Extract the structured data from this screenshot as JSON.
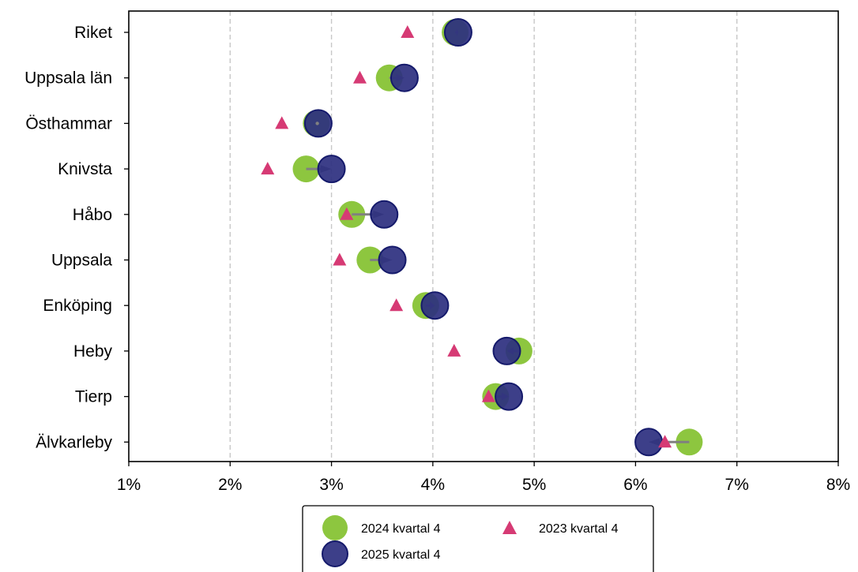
{
  "chart_data": {
    "type": "scatter",
    "categories": [
      "Riket",
      "Uppsala län",
      "Östhammar",
      "Knivsta",
      "Håbo",
      "Uppsala",
      "Enköping",
      "Heby",
      "Tierp",
      "Älvkarleby"
    ],
    "series": [
      {
        "name": "2024 kvartal 4",
        "marker": "circle",
        "color": "#8dc63f",
        "values": [
          4.22,
          3.57,
          2.85,
          2.75,
          3.2,
          3.38,
          3.93,
          4.85,
          4.62,
          6.53
        ]
      },
      {
        "name": "2025 kvartal 4",
        "marker": "circle",
        "color": "#2d2f7f",
        "values": [
          4.25,
          3.72,
          2.87,
          3.0,
          3.52,
          3.6,
          4.02,
          4.73,
          4.75,
          6.13
        ]
      },
      {
        "name": "2023 kvartal 4",
        "marker": "triangle",
        "color": "#d63a74",
        "values": [
          3.75,
          3.28,
          2.51,
          2.37,
          3.15,
          3.08,
          3.64,
          4.21,
          4.55,
          6.29
        ]
      }
    ],
    "arrows": {
      "from": "2024 kvartal 4",
      "to": "2025 kvartal 4",
      "color": "#808080"
    },
    "xlim": [
      1,
      8
    ],
    "xticks": [
      "1%",
      "2%",
      "3%",
      "4%",
      "5%",
      "6%",
      "7%",
      "8%"
    ],
    "grid": {
      "x": true,
      "style": "dashed"
    },
    "legend": {
      "placement": "bottom-center",
      "entries": [
        "2024 kvartal 4",
        "2023 kvartal 4",
        "2025 kvartal 4"
      ]
    }
  }
}
